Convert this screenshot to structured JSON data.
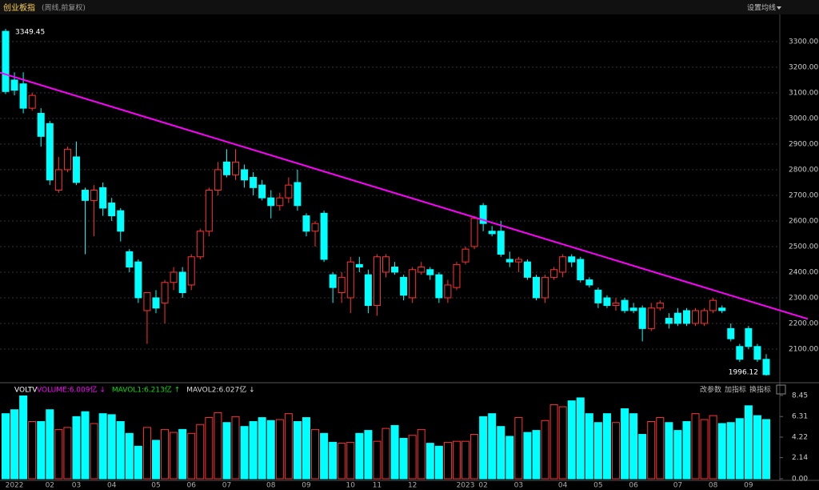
{
  "chart_data": [
    {
      "type": "candlestick",
      "title": "创业板指",
      "subtitle": "(周线,前复权)",
      "button": "设置均线",
      "categories": [
        null,
        "2022",
        null,
        null,
        null,
        "02",
        null,
        null,
        "03",
        null,
        null,
        null,
        "04",
        null,
        null,
        null,
        null,
        "05",
        null,
        null,
        null,
        "06",
        null,
        null,
        null,
        "07",
        null,
        null,
        null,
        null,
        "08",
        null,
        null,
        null,
        "09",
        null,
        null,
        null,
        null,
        "10",
        null,
        null,
        "11",
        null,
        null,
        null,
        "12",
        null,
        null,
        null,
        null,
        null,
        "2023",
        null,
        "02",
        null,
        null,
        null,
        "03",
        null,
        null,
        null,
        null,
        "04",
        null,
        null,
        null,
        "05",
        null,
        null,
        null,
        "06",
        null,
        null,
        null,
        null,
        "07",
        null,
        null,
        null,
        "08",
        null,
        null,
        null,
        "09",
        null,
        null
      ],
      "open": [
        3340,
        3150,
        3135,
        3040,
        3020,
        2980,
        2720,
        2800,
        2850,
        2720,
        2680,
        2730,
        2670,
        2640,
        2480,
        2440,
        2250,
        2300,
        2280,
        2360,
        2400,
        2350,
        2460,
        2560,
        2720,
        2830,
        2780,
        2800,
        2770,
        2740,
        2690,
        2660,
        2690,
        2750,
        2620,
        2560,
        2630,
        2390,
        2320,
        2300,
        2430,
        2390,
        2270,
        2400,
        2420,
        2380,
        2300,
        2400,
        2410,
        2390,
        2300,
        2340,
        2440,
        2500,
        2660,
        2560,
        2560,
        2450,
        2440,
        2440,
        2380,
        2300,
        2380,
        2400,
        2460,
        2450,
        2370,
        2330,
        2300,
        2270,
        2290,
        2260,
        2260,
        2180,
        2260,
        2220,
        2240,
        2250,
        2200,
        2200,
        2250,
        2260,
        2180,
        2110,
        2180,
        2110,
        2060
      ],
      "high": [
        3349.45,
        3180,
        3180,
        3100,
        3040,
        2990,
        2850,
        2890,
        2910,
        2730,
        2740,
        2750,
        2690,
        2650,
        2490,
        2450,
        2320,
        2330,
        2370,
        2420,
        2420,
        2470,
        2570,
        2730,
        2830,
        2880,
        2880,
        2820,
        2790,
        2760,
        2720,
        2710,
        2770,
        2800,
        2630,
        2600,
        2640,
        2400,
        2400,
        2460,
        2460,
        2410,
        2470,
        2470,
        2440,
        2390,
        2420,
        2440,
        2420,
        2400,
        2370,
        2440,
        2500,
        2620,
        2670,
        2580,
        2600,
        2480,
        2460,
        2450,
        2390,
        2390,
        2420,
        2470,
        2470,
        2460,
        2380,
        2340,
        2310,
        2300,
        2300,
        2280,
        2270,
        2280,
        2290,
        2240,
        2260,
        2260,
        2260,
        2260,
        2300,
        2270,
        2200,
        2120,
        2190,
        2120,
        2080
      ],
      "low": [
        3095,
        3090,
        3020,
        3030,
        2890,
        2740,
        2710,
        2790,
        2740,
        2470,
        2540,
        2620,
        2600,
        2520,
        2400,
        2280,
        2120,
        2240,
        2200,
        2330,
        2300,
        2330,
        2450,
        2540,
        2700,
        2770,
        2760,
        2730,
        2700,
        2680,
        2610,
        2640,
        2670,
        2640,
        2540,
        2500,
        2440,
        2280,
        2280,
        2240,
        2400,
        2240,
        2230,
        2380,
        2390,
        2290,
        2280,
        2390,
        2370,
        2280,
        2280,
        2330,
        2430,
        2490,
        2560,
        2540,
        2460,
        2420,
        2400,
        2370,
        2290,
        2280,
        2370,
        2380,
        2420,
        2360,
        2340,
        2260,
        2260,
        2250,
        2240,
        2240,
        2130,
        2170,
        2250,
        2180,
        2190,
        2190,
        2190,
        2190,
        2240,
        2240,
        2130,
        2050,
        2100,
        2050,
        1996.12
      ],
      "close": [
        3105,
        3110,
        3040,
        3090,
        2930,
        2760,
        2800,
        2880,
        2750,
        2680,
        2720,
        2650,
        2620,
        2560,
        2420,
        2300,
        2320,
        2260,
        2360,
        2400,
        2320,
        2460,
        2560,
        2720,
        2800,
        2780,
        2830,
        2760,
        2730,
        2690,
        2660,
        2690,
        2740,
        2660,
        2560,
        2590,
        2450,
        2340,
        2380,
        2440,
        2420,
        2270,
        2460,
        2460,
        2400,
        2310,
        2410,
        2420,
        2390,
        2300,
        2350,
        2430,
        2490,
        2610,
        2590,
        2550,
        2470,
        2440,
        2450,
        2380,
        2300,
        2380,
        2410,
        2460,
        2440,
        2370,
        2350,
        2280,
        2270,
        2280,
        2250,
        2250,
        2180,
        2260,
        2280,
        2200,
        2200,
        2200,
        2250,
        2250,
        2290,
        2250,
        2140,
        2060,
        2110,
        2060,
        2000
      ],
      "up_color": "#ff3232",
      "down_color": "#00ffff",
      "ylim": [
        1978,
        3406
      ],
      "yticks": [
        {
          "value": 2100,
          "label": "2100.00"
        },
        {
          "value": 2200,
          "label": "2200.00"
        },
        {
          "value": 2300,
          "label": "2300.00"
        },
        {
          "value": 2400,
          "label": "2400.00"
        },
        {
          "value": 2500,
          "label": "2500.00"
        },
        {
          "value": 2600,
          "label": "2600.00"
        },
        {
          "value": 2700,
          "label": "2700.00"
        },
        {
          "value": 2800,
          "label": "2800.00"
        },
        {
          "value": 2900,
          "label": "2900.00"
        },
        {
          "value": 3000,
          "label": "3000.00"
        },
        {
          "value": 3100,
          "label": "3100.00"
        },
        {
          "value": 3200,
          "label": "3200.00"
        },
        {
          "value": 3300,
          "label": "3300.00"
        }
      ],
      "grid": true,
      "trendline": {
        "color": "#ff00ff",
        "x": [
          0,
          86
        ],
        "values": [
          3172,
          2267
        ]
      },
      "annotations": [
        {
          "index": 0,
          "value": 3349.45,
          "label": "3349.45"
        },
        {
          "index": 86,
          "value": 1996.12,
          "label": "1996.12"
        }
      ]
    },
    {
      "type": "bar",
      "title": "VOLTV",
      "legend": [
        {
          "text": "VOLUME:6.009亿 ↓",
          "color": "#ff00ff"
        },
        {
          "text": "MAVOL1:6.213亿 ↑",
          "color": "#00e000"
        },
        {
          "text": "MAVOL2:6.027亿 ↓",
          "color": "#dddddd"
        }
      ],
      "buttons": [
        "改参数",
        "加指标",
        "换指标"
      ],
      "values": [
        6.6,
        7.0,
        8.4,
        5.8,
        5.8,
        7.0,
        5.0,
        5.2,
        6.3,
        6.8,
        5.6,
        6.6,
        6.5,
        5.8,
        4.6,
        3.3,
        5.2,
        3.9,
        5.0,
        4.7,
        5.0,
        4.6,
        5.5,
        6.2,
        6.7,
        5.7,
        6.3,
        5.3,
        5.8,
        6.2,
        5.9,
        6.0,
        6.6,
        5.8,
        6.2,
        5.0,
        4.6,
        3.7,
        3.6,
        3.7,
        4.6,
        4.9,
        3.8,
        5.1,
        5.4,
        4.1,
        4.4,
        5.0,
        3.6,
        3.3,
        3.7,
        3.8,
        3.8,
        4.5,
        6.3,
        6.6,
        5.3,
        4.3,
        6.2,
        4.7,
        4.9,
        5.9,
        7.5,
        7.3,
        7.9,
        8.2,
        6.6,
        5.7,
        6.6,
        5.7,
        7.1,
        6.6,
        4.5,
        5.8,
        6.2,
        5.7,
        4.9,
        5.8,
        6.6,
        6.0,
        6.4,
        5.6,
        5.7,
        6.1,
        7.4,
        6.4,
        6.009
      ],
      "ylim": [
        0,
        8.6
      ],
      "yticks": [
        {
          "value": 0,
          "label": "0.00"
        },
        2.14,
        4.22,
        6.31,
        8.45
      ]
    }
  ]
}
